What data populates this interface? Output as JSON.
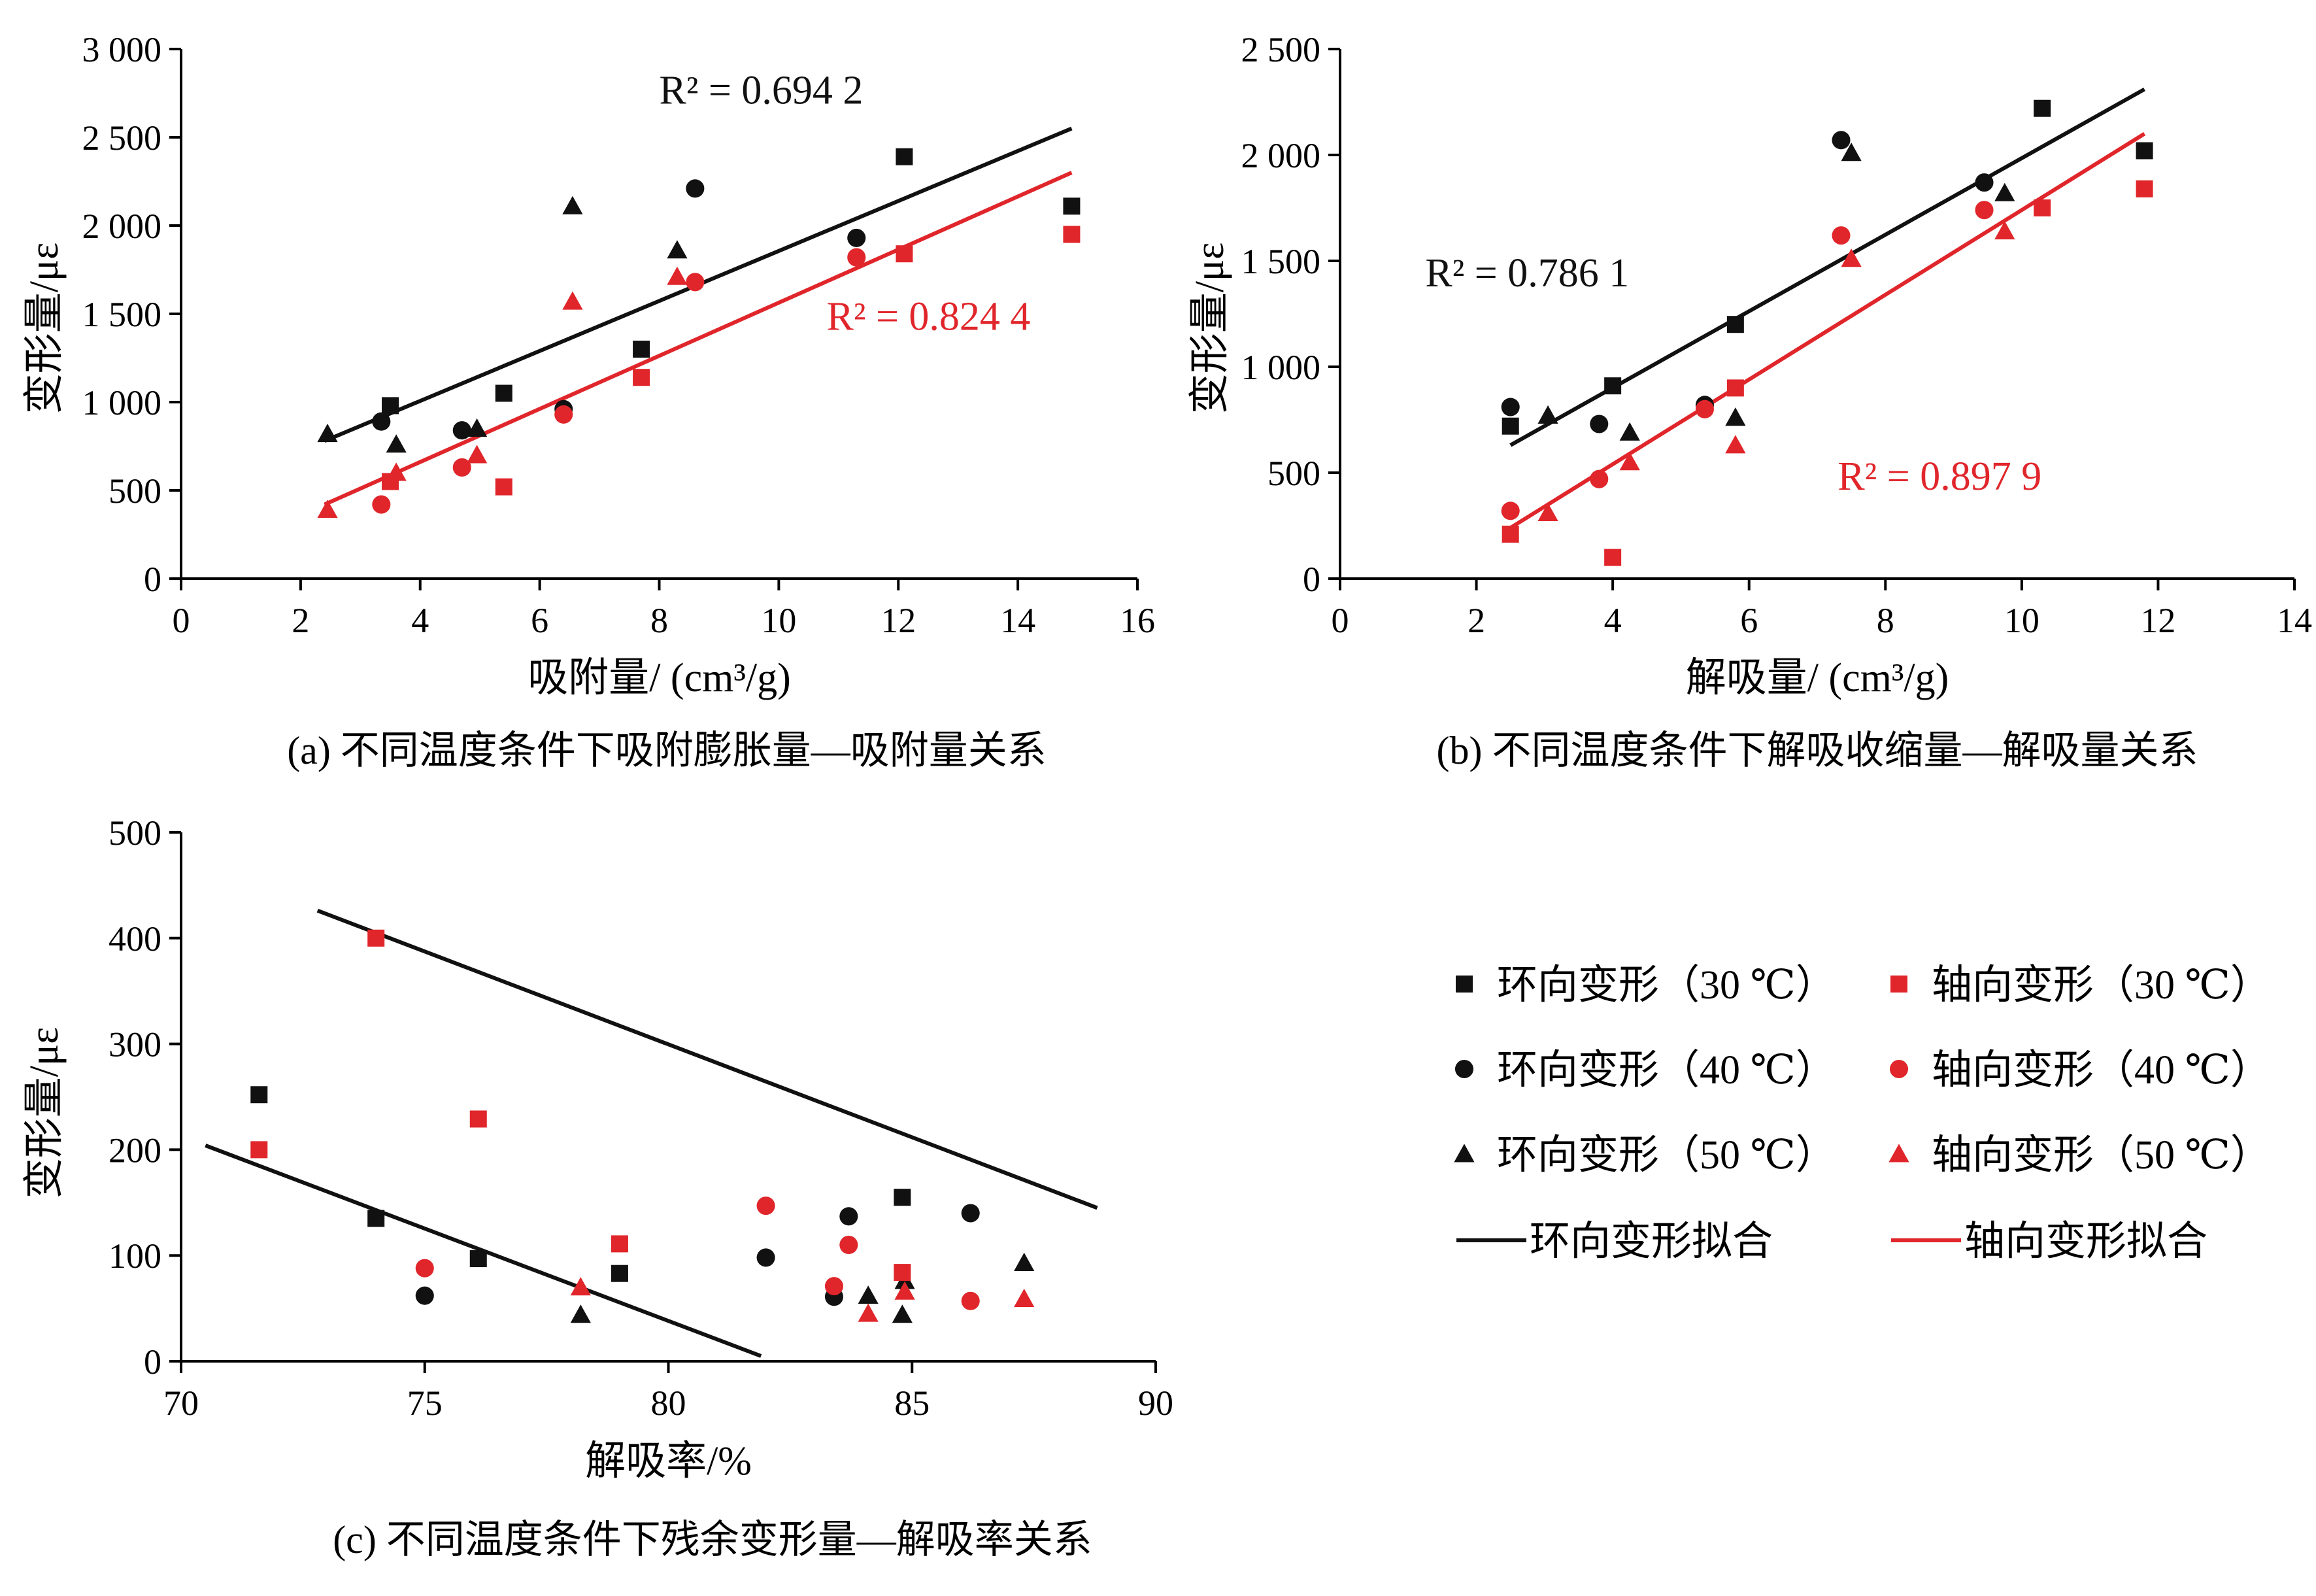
{
  "colors": {
    "hoop": "#111111",
    "axial": "#e0262b",
    "axis": "#000000"
  },
  "legend": [
    {
      "label": "环向变形（30 ℃）",
      "series": "hoop",
      "marker": "square"
    },
    {
      "label": "轴向变形（30 ℃）",
      "series": "axial",
      "marker": "square"
    },
    {
      "label": "环向变形（40 ℃）",
      "series": "hoop",
      "marker": "circle"
    },
    {
      "label": "轴向变形（40 ℃）",
      "series": "axial",
      "marker": "circle"
    },
    {
      "label": "环向变形（50 ℃）",
      "series": "hoop",
      "marker": "triangle"
    },
    {
      "label": "轴向变形（50 ℃）",
      "series": "axial",
      "marker": "triangle"
    },
    {
      "label": "环向变形拟合",
      "series": "hoop",
      "marker": "line"
    },
    {
      "label": "轴向变形拟合",
      "series": "axial",
      "marker": "line"
    }
  ],
  "chart_data": [
    {
      "id": "a",
      "type": "scatter",
      "caption": "(a) 不同温度条件下吸附膨胀量—吸附量关系",
      "xlabel": "吸附量/ (cm³/g)",
      "ylabel": "变形量/με",
      "xlim": [
        0,
        16
      ],
      "ylim": [
        0,
        3000
      ],
      "xticks": [
        0,
        2,
        4,
        6,
        8,
        10,
        12,
        14,
        16
      ],
      "yticks": [
        0,
        500,
        1000,
        1500,
        2000,
        2500,
        3000
      ],
      "xtick_labels": [
        "0",
        "2",
        "4",
        "6",
        "8",
        "10",
        "12",
        "14",
        "16"
      ],
      "ytick_labels": [
        "0",
        "500",
        "1 000",
        "1 500",
        "2 000",
        "2 500",
        "3 000"
      ],
      "series": [
        {
          "name": "环向变形（30 ℃）",
          "color": "hoop",
          "marker": "square",
          "points": [
            [
              3.5,
              980
            ],
            [
              5.4,
              1050
            ],
            [
              7.7,
              1300
            ],
            [
              12.1,
              2390
            ],
            [
              14.9,
              2110
            ]
          ]
        },
        {
          "name": "环向变形（40 ℃）",
          "color": "hoop",
          "marker": "circle",
          "points": [
            [
              3.35,
              890
            ],
            [
              4.7,
              840
            ],
            [
              6.4,
              960
            ],
            [
              8.6,
              2210
            ],
            [
              11.3,
              1930
            ]
          ]
        },
        {
          "name": "环向变形（50 ℃）",
          "color": "hoop",
          "marker": "triangle",
          "points": [
            [
              2.45,
              820
            ],
            [
              3.6,
              760
            ],
            [
              4.95,
              850
            ],
            [
              6.55,
              2110
            ],
            [
              8.3,
              1860
            ]
          ]
        },
        {
          "name": "轴向变形（30 ℃）",
          "color": "axial",
          "marker": "square",
          "points": [
            [
              3.5,
              550
            ],
            [
              5.4,
              520
            ],
            [
              7.7,
              1140
            ],
            [
              12.1,
              1840
            ],
            [
              14.9,
              1950
            ]
          ]
        },
        {
          "name": "轴向变形（40 ℃）",
          "color": "axial",
          "marker": "circle",
          "points": [
            [
              3.35,
              420
            ],
            [
              4.7,
              630
            ],
            [
              6.4,
              930
            ],
            [
              8.6,
              1680
            ],
            [
              11.3,
              1820
            ]
          ]
        },
        {
          "name": "轴向变形（50 ℃）",
          "color": "axial",
          "marker": "triangle",
          "points": [
            [
              2.45,
              390
            ],
            [
              3.6,
              600
            ],
            [
              4.95,
              700
            ],
            [
              6.55,
              1570
            ],
            [
              8.3,
              1710
            ]
          ]
        }
      ],
      "fits": [
        {
          "color": "hoop",
          "from": [
            2.4,
            780
          ],
          "to": [
            14.9,
            2550
          ],
          "r2": "R² = 0.694 2",
          "r2_at": [
            8.0,
            2690
          ]
        },
        {
          "color": "axial",
          "from": [
            2.4,
            420
          ],
          "to": [
            14.9,
            2300
          ],
          "r2": "R² = 0.824 4",
          "r2_at": [
            10.8,
            1410
          ]
        }
      ]
    },
    {
      "id": "b",
      "type": "scatter",
      "caption": "(b) 不同温度条件下解吸收缩量—解吸量关系",
      "xlabel": "解吸量/ (cm³/g)",
      "ylabel": "变形量/με",
      "xlim": [
        0,
        14
      ],
      "ylim": [
        0,
        2500
      ],
      "xticks": [
        0,
        2,
        4,
        6,
        8,
        10,
        12,
        14
      ],
      "yticks": [
        0,
        500,
        1000,
        1500,
        2000,
        2500
      ],
      "xtick_labels": [
        "0",
        "2",
        "4",
        "6",
        "8",
        "10",
        "12",
        "14"
      ],
      "ytick_labels": [
        "0",
        "500",
        "1 000",
        "1 500",
        "2 000",
        "2 500"
      ],
      "series": [
        {
          "name": "环向变形（30 ℃）",
          "color": "hoop",
          "marker": "square",
          "points": [
            [
              2.5,
              720
            ],
            [
              4.0,
              910
            ],
            [
              5.8,
              1200
            ],
            [
              10.3,
              2220
            ],
            [
              11.8,
              2020
            ]
          ]
        },
        {
          "name": "环向变形（40 ℃）",
          "color": "hoop",
          "marker": "circle",
          "points": [
            [
              2.5,
              810
            ],
            [
              3.8,
              730
            ],
            [
              5.35,
              820
            ],
            [
              7.35,
              2070
            ],
            [
              9.45,
              1870
            ]
          ]
        },
        {
          "name": "环向变形（50 ℃）",
          "color": "hoop",
          "marker": "triangle",
          "points": [
            [
              3.05,
              770
            ],
            [
              4.25,
              690
            ],
            [
              5.8,
              760
            ],
            [
              7.5,
              2010
            ],
            [
              9.75,
              1820
            ]
          ]
        },
        {
          "name": "轴向变形（30 ℃）",
          "color": "axial",
          "marker": "square",
          "points": [
            [
              2.5,
              210
            ],
            [
              4.0,
              100
            ],
            [
              5.8,
              900
            ],
            [
              10.3,
              1750
            ],
            [
              11.8,
              1840
            ]
          ]
        },
        {
          "name": "轴向变形（40 ℃）",
          "color": "axial",
          "marker": "circle",
          "points": [
            [
              2.5,
              320
            ],
            [
              3.8,
              470
            ],
            [
              5.35,
              800
            ],
            [
              7.35,
              1620
            ],
            [
              9.45,
              1740
            ]
          ]
        },
        {
          "name": "轴向变形（50 ℃）",
          "color": "axial",
          "marker": "triangle",
          "points": [
            [
              3.05,
              310
            ],
            [
              4.25,
              550
            ],
            [
              5.8,
              630
            ],
            [
              7.5,
              1510
            ],
            [
              9.75,
              1640
            ]
          ]
        }
      ],
      "fits": [
        {
          "color": "hoop",
          "from": [
            2.5,
            630
          ],
          "to": [
            11.8,
            2310
          ],
          "r2": "R² = 0.786 1",
          "r2_at": [
            1.25,
            1380
          ]
        },
        {
          "color": "axial",
          "from": [
            2.5,
            240
          ],
          "to": [
            11.8,
            2100
          ],
          "r2": "R² = 0.897 9",
          "r2_at": [
            7.3,
            420
          ]
        }
      ]
    },
    {
      "id": "c",
      "type": "scatter",
      "caption": "(c) 不同温度条件下残余变形量—解吸率关系",
      "xlabel": "解吸率/%",
      "ylabel": "变形量/με",
      "xlim": [
        70,
        90
      ],
      "ylim": [
        0,
        500
      ],
      "xticks": [
        70,
        75,
        80,
        85,
        90
      ],
      "yticks": [
        0,
        100,
        200,
        300,
        400,
        500
      ],
      "xtick_labels": [
        "70",
        "75",
        "80",
        "85",
        "90"
      ],
      "ytick_labels": [
        "0",
        "100",
        "200",
        "300",
        "400",
        "500"
      ],
      "series": [
        {
          "name": "环向变形（30 ℃）",
          "color": "hoop",
          "marker": "square",
          "points": [
            [
              71.6,
              252
            ],
            [
              74.0,
              135
            ],
            [
              76.1,
              97
            ],
            [
              79.0,
              83
            ],
            [
              84.8,
              155
            ]
          ]
        },
        {
          "name": "环向变形（40 ℃）",
          "color": "hoop",
          "marker": "circle",
          "points": [
            [
              75.0,
              62
            ],
            [
              82.0,
              98
            ],
            [
              83.4,
              61
            ],
            [
              83.7,
              137
            ],
            [
              86.2,
              140
            ]
          ]
        },
        {
          "name": "环向变形（50 ℃）",
          "color": "hoop",
          "marker": "triangle",
          "points": [
            [
              78.2,
              44
            ],
            [
              84.1,
              62
            ],
            [
              84.8,
              44
            ],
            [
              84.85,
              76
            ],
            [
              87.3,
              93
            ]
          ]
        },
        {
          "name": "轴向变形（30 ℃）",
          "color": "axial",
          "marker": "square",
          "points": [
            [
              71.6,
              200
            ],
            [
              74.0,
              400
            ],
            [
              76.1,
              229
            ],
            [
              79.0,
              111
            ],
            [
              84.8,
              84
            ]
          ]
        },
        {
          "name": "轴向变形（40 ℃）",
          "color": "axial",
          "marker": "circle",
          "points": [
            [
              75.0,
              88
            ],
            [
              82.0,
              147
            ],
            [
              83.4,
              71
            ],
            [
              83.7,
              110
            ],
            [
              86.2,
              57
            ]
          ]
        },
        {
          "name": "轴向变形（50 ℃）",
          "color": "axial",
          "marker": "triangle",
          "points": [
            [
              78.2,
              70
            ],
            [
              84.1,
              45
            ],
            [
              84.85,
              66
            ],
            [
              87.3,
              59
            ]
          ]
        }
      ],
      "fits": [
        {
          "color": "hoop",
          "from": [
            72.8,
            426
          ],
          "to": [
            88.8,
            145
          ],
          "r2": "",
          "r2_at": null
        },
        {
          "color": "hoop",
          "from": [
            70.5,
            204
          ],
          "to": [
            81.9,
            5
          ],
          "r2": "",
          "r2_at": null
        }
      ]
    }
  ]
}
